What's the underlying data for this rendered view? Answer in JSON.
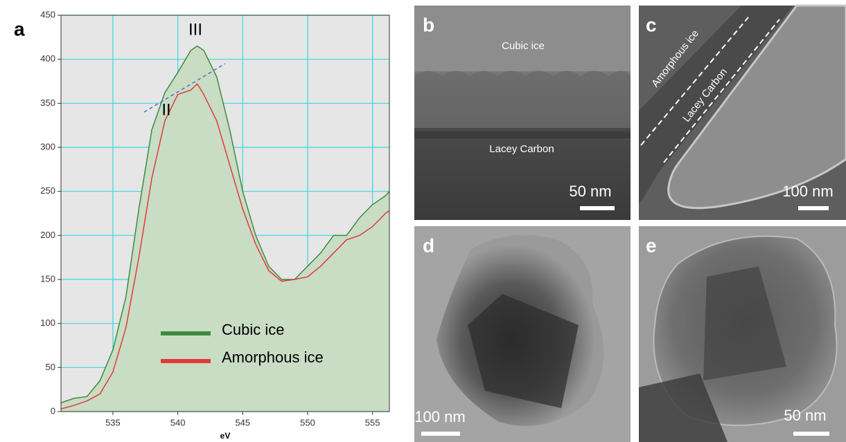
{
  "chart_data": {
    "type": "line",
    "panel_label": "a",
    "xlabel": "eV",
    "annotations": [
      "II",
      "III"
    ],
    "x": [
      531,
      532,
      533,
      534,
      535,
      536,
      537,
      538,
      539,
      540,
      541,
      541.5,
      542,
      543,
      544,
      545,
      546,
      547,
      548,
      549,
      550,
      551,
      552,
      553,
      554,
      555,
      556,
      556.3
    ],
    "series": [
      {
        "name": "Cubic ice",
        "color": "#3f8a3f",
        "fill": "#c9dcc4",
        "values": [
          10,
          15,
          17,
          35,
          70,
          130,
          230,
          320,
          362,
          385,
          410,
          415,
          410,
          380,
          320,
          250,
          200,
          165,
          150,
          150,
          165,
          180,
          200,
          200,
          220,
          235,
          245,
          250
        ]
      },
      {
        "name": "Amorphous ice",
        "color": "#e03a3a",
        "values": [
          3,
          7,
          12,
          20,
          45,
          95,
          175,
          265,
          330,
          360,
          365,
          372,
          360,
          330,
          280,
          230,
          190,
          160,
          148,
          150,
          153,
          165,
          180,
          195,
          200,
          210,
          225,
          228
        ]
      }
    ],
    "xlim": [
      531,
      556.3
    ],
    "ylim": [
      0,
      450
    ],
    "xticks": [
      535,
      540,
      545,
      550,
      555
    ],
    "yticks": [
      0,
      50,
      100,
      150,
      200,
      250,
      300,
      350,
      400,
      450
    ],
    "grid": true,
    "legend": "lower center"
  },
  "panels": [
    {
      "label": "b",
      "texts": [
        "Cubic ice",
        "Lacey Carbon"
      ],
      "scale_bar": "50 nm"
    },
    {
      "label": "c",
      "texts": [
        "Amorphous ice",
        "Lacey Carbon"
      ],
      "scale_bar": "100 nm"
    },
    {
      "label": "d",
      "texts": [],
      "scale_bar": "100 nm"
    },
    {
      "label": "e",
      "texts": [],
      "scale_bar": "50 nm"
    }
  ]
}
